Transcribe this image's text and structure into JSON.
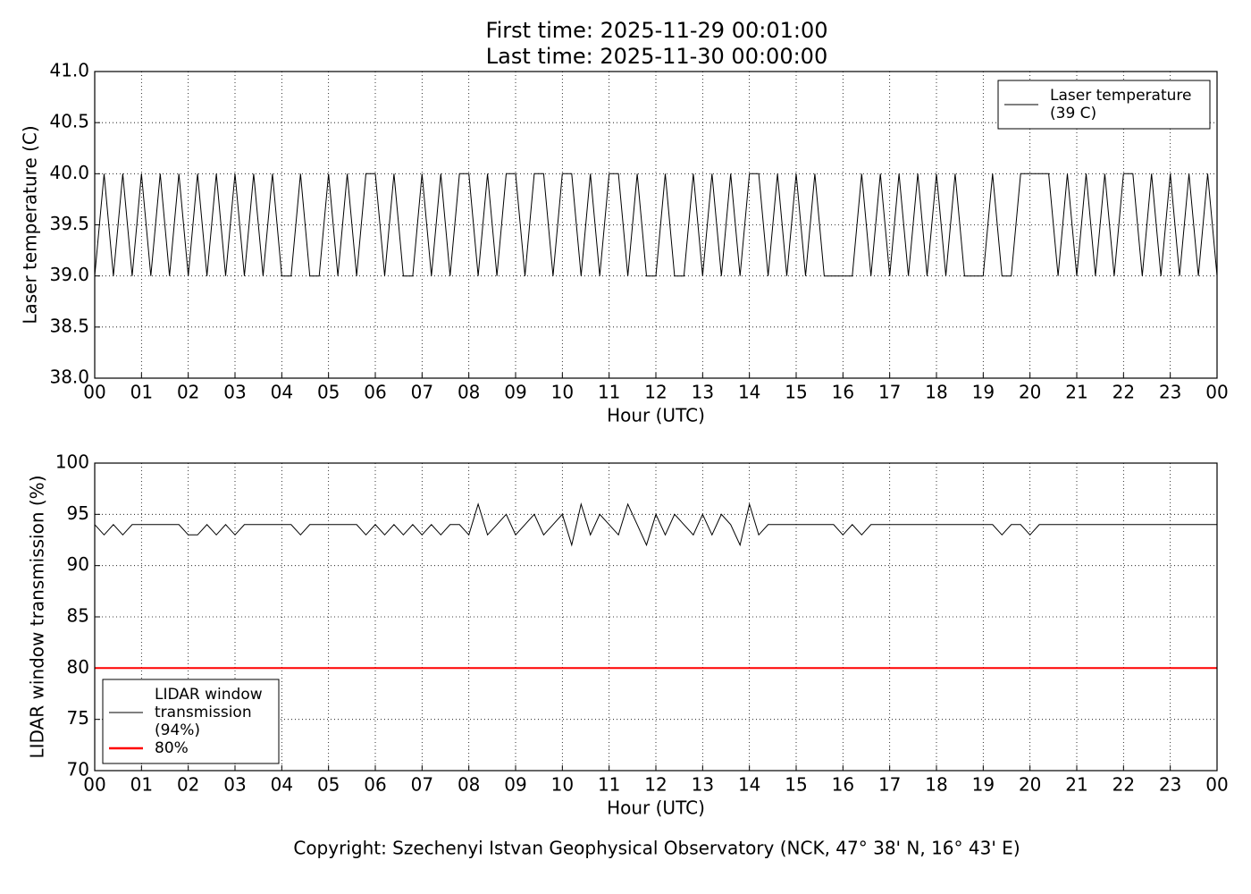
{
  "title": "First time: 2025-11-29 00:01:00",
  "subtitle": "Last time: 2025-11-30 00:00:00",
  "footer": "Copyright: Szechenyi Istvan Geophysical Observatory (NCK, 47° 38' N, 16° 43' E)",
  "chart_data": [
    {
      "type": "line",
      "xlabel": "Hour (UTC)",
      "ylabel": "Laser temperature (C)",
      "grid": true,
      "legend": "upper right",
      "xlim": [
        0,
        24
      ],
      "ylim": [
        38,
        41
      ],
      "xticks": [
        {
          "value": 0,
          "label": "00"
        },
        {
          "value": 1,
          "label": "01"
        },
        {
          "value": 2,
          "label": "02"
        },
        {
          "value": 3,
          "label": "03"
        },
        {
          "value": 4,
          "label": "04"
        },
        {
          "value": 5,
          "label": "05"
        },
        {
          "value": 6,
          "label": "06"
        },
        {
          "value": 7,
          "label": "07"
        },
        {
          "value": 8,
          "label": "08"
        },
        {
          "value": 9,
          "label": "09"
        },
        {
          "value": 10,
          "label": "10"
        },
        {
          "value": 11,
          "label": "11"
        },
        {
          "value": 12,
          "label": "12"
        },
        {
          "value": 13,
          "label": "13"
        },
        {
          "value": 14,
          "label": "14"
        },
        {
          "value": 15,
          "label": "15"
        },
        {
          "value": 16,
          "label": "16"
        },
        {
          "value": 17,
          "label": "17"
        },
        {
          "value": 18,
          "label": "18"
        },
        {
          "value": 19,
          "label": "19"
        },
        {
          "value": 20,
          "label": "20"
        },
        {
          "value": 21,
          "label": "21"
        },
        {
          "value": 22,
          "label": "22"
        },
        {
          "value": 23,
          "label": "23"
        },
        {
          "value": 24,
          "label": "00"
        }
      ],
      "yticks": [
        {
          "value": 38,
          "label": "38.0"
        },
        {
          "value": 38.5,
          "label": "38.5"
        },
        {
          "value": 39,
          "label": "39.0"
        },
        {
          "value": 39.5,
          "label": "39.5"
        },
        {
          "value": 40,
          "label": "40.0"
        },
        {
          "value": 40.5,
          "label": "40.5"
        },
        {
          "value": 41,
          "label": "41.0"
        }
      ],
      "x": [
        0,
        0.2,
        0.4,
        0.6,
        0.8,
        1,
        1.2,
        1.4,
        1.6,
        1.8,
        2,
        2.2,
        2.4,
        2.6,
        2.8,
        3,
        3.2,
        3.4,
        3.6,
        3.8,
        4,
        4.2,
        4.4,
        4.6,
        4.8,
        5,
        5.2,
        5.4,
        5.6,
        5.8,
        6,
        6.2,
        6.4,
        6.6,
        6.8,
        7,
        7.2,
        7.4,
        7.6,
        7.8,
        8,
        8.2,
        8.4,
        8.6,
        8.8,
        9,
        9.2,
        9.4,
        9.6,
        9.8,
        10,
        10.2,
        10.4,
        10.6,
        10.8,
        11,
        11.2,
        11.4,
        11.6,
        11.8,
        12,
        12.2,
        12.4,
        12.6,
        12.8,
        13,
        13.2,
        13.4,
        13.6,
        13.8,
        14,
        14.2,
        14.4,
        14.6,
        14.8,
        15,
        15.2,
        15.4,
        15.6,
        15.8,
        16,
        16.2,
        16.4,
        16.6,
        16.8,
        17,
        17.2,
        17.4,
        17.6,
        17.8,
        18,
        18.2,
        18.4,
        18.6,
        18.8,
        19,
        19.2,
        19.4,
        19.6,
        19.8,
        20,
        20.2,
        20.4,
        20.6,
        20.8,
        21,
        21.2,
        21.4,
        21.6,
        21.8,
        22,
        22.2,
        22.4,
        22.6,
        22.8,
        23,
        23.2,
        23.4,
        23.6,
        23.8,
        24
      ],
      "series": [
        {
          "name": "Laser temperature\n(39 C)",
          "color": "#000000",
          "values": [
            39,
            40,
            39,
            40,
            39,
            40,
            39,
            40,
            39,
            40,
            39,
            40,
            39,
            40,
            39,
            40,
            39,
            40,
            39,
            40,
            39,
            39,
            40,
            39,
            39,
            40,
            39,
            40,
            39,
            40,
            40,
            39,
            40,
            39,
            39,
            40,
            39,
            40,
            39,
            40,
            40,
            39,
            40,
            39,
            40,
            40,
            39,
            40,
            40,
            39,
            40,
            40,
            39,
            40,
            39,
            40,
            40,
            39,
            40,
            39,
            39,
            40,
            39,
            39,
            40,
            39,
            40,
            39,
            40,
            39,
            40,
            40,
            39,
            40,
            39,
            40,
            39,
            40,
            39,
            39,
            39,
            39,
            40,
            39,
            40,
            39,
            40,
            39,
            40,
            39,
            40,
            39,
            40,
            39,
            39,
            39,
            40,
            39,
            39,
            40,
            40,
            40,
            40,
            39,
            40,
            39,
            40,
            39,
            40,
            39,
            40,
            40,
            39,
            40,
            39,
            40,
            39,
            40,
            39,
            40,
            39
          ]
        }
      ]
    },
    {
      "type": "line",
      "xlabel": "Hour (UTC)",
      "ylabel": "LIDAR window transmission (%)",
      "grid": true,
      "legend": "lower left",
      "xlim": [
        0,
        24
      ],
      "ylim": [
        70,
        100
      ],
      "xticks": [
        {
          "value": 0,
          "label": "00"
        },
        {
          "value": 1,
          "label": "01"
        },
        {
          "value": 2,
          "label": "02"
        },
        {
          "value": 3,
          "label": "03"
        },
        {
          "value": 4,
          "label": "04"
        },
        {
          "value": 5,
          "label": "05"
        },
        {
          "value": 6,
          "label": "06"
        },
        {
          "value": 7,
          "label": "07"
        },
        {
          "value": 8,
          "label": "08"
        },
        {
          "value": 9,
          "label": "09"
        },
        {
          "value": 10,
          "label": "10"
        },
        {
          "value": 11,
          "label": "11"
        },
        {
          "value": 12,
          "label": "12"
        },
        {
          "value": 13,
          "label": "13"
        },
        {
          "value": 14,
          "label": "14"
        },
        {
          "value": 15,
          "label": "15"
        },
        {
          "value": 16,
          "label": "16"
        },
        {
          "value": 17,
          "label": "17"
        },
        {
          "value": 18,
          "label": "18"
        },
        {
          "value": 19,
          "label": "19"
        },
        {
          "value": 20,
          "label": "20"
        },
        {
          "value": 21,
          "label": "21"
        },
        {
          "value": 22,
          "label": "22"
        },
        {
          "value": 23,
          "label": "23"
        },
        {
          "value": 24,
          "label": "00"
        }
      ],
      "yticks": [
        70,
        75,
        80,
        85,
        90,
        95,
        100
      ],
      "x": [
        0,
        0.2,
        0.4,
        0.6,
        0.8,
        1,
        1.2,
        1.4,
        1.6,
        1.8,
        2,
        2.2,
        2.4,
        2.6,
        2.8,
        3,
        3.2,
        3.4,
        3.6,
        3.8,
        4,
        4.2,
        4.4,
        4.6,
        4.8,
        5,
        5.2,
        5.4,
        5.6,
        5.8,
        6,
        6.2,
        6.4,
        6.6,
        6.8,
        7,
        7.2,
        7.4,
        7.6,
        7.8,
        8,
        8.2,
        8.4,
        8.6,
        8.8,
        9,
        9.2,
        9.4,
        9.6,
        9.8,
        10,
        10.2,
        10.4,
        10.6,
        10.8,
        11,
        11.2,
        11.4,
        11.6,
        11.8,
        12,
        12.2,
        12.4,
        12.6,
        12.8,
        13,
        13.2,
        13.4,
        13.6,
        13.8,
        14,
        14.2,
        14.4,
        14.6,
        14.8,
        15,
        15.2,
        15.4,
        15.6,
        15.8,
        16,
        16.2,
        16.4,
        16.6,
        16.8,
        17,
        17.2,
        17.4,
        17.6,
        17.8,
        18,
        18.2,
        18.4,
        18.6,
        18.8,
        19,
        19.2,
        19.4,
        19.6,
        19.8,
        20,
        20.2,
        20.4,
        20.6,
        20.8,
        21,
        21.2,
        21.4,
        21.6,
        21.8,
        22,
        22.2,
        22.4,
        22.6,
        22.8,
        23,
        23.2,
        23.4,
        23.6,
        23.8,
        24
      ],
      "series": [
        {
          "name": "LIDAR window\ntransmission\n(94%)",
          "color": "#000000",
          "values": [
            94,
            93,
            94,
            93,
            94,
            94,
            94,
            94,
            94,
            94,
            93,
            93,
            94,
            93,
            94,
            93,
            94,
            94,
            94,
            94,
            94,
            94,
            93,
            94,
            94,
            94,
            94,
            94,
            94,
            93,
            94,
            93,
            94,
            93,
            94,
            93,
            94,
            93,
            94,
            94,
            93,
            96,
            93,
            94,
            95,
            93,
            94,
            95,
            93,
            94,
            95,
            92,
            96,
            93,
            95,
            94,
            93,
            96,
            94,
            92,
            95,
            93,
            95,
            94,
            93,
            95,
            93,
            95,
            94,
            92,
            96,
            93,
            94,
            94,
            94,
            94,
            94,
            94,
            94,
            94,
            93,
            94,
            93,
            94,
            94,
            94,
            94,
            94,
            94,
            94,
            94,
            94,
            94,
            94,
            94,
            94,
            94,
            93,
            94,
            94,
            93,
            94,
            94,
            94,
            94,
            94,
            94,
            94,
            94,
            94,
            94,
            94,
            94,
            94,
            94,
            94,
            94,
            94,
            94,
            94,
            94
          ]
        },
        {
          "name": "80%",
          "color": "#ff0000",
          "x": [
            0,
            24
          ],
          "values": [
            80,
            80
          ]
        }
      ]
    }
  ]
}
